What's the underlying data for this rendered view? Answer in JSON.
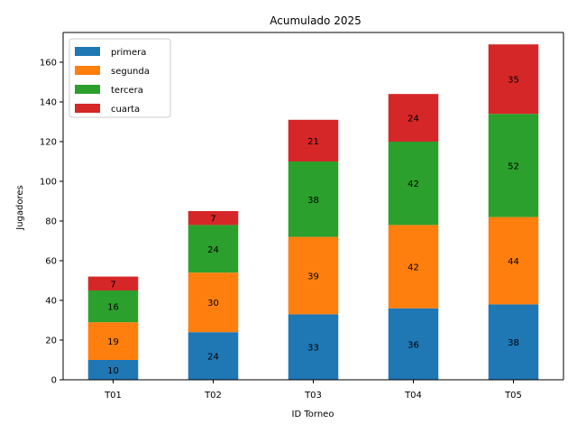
{
  "chart_data": {
    "type": "bar",
    "stacked": true,
    "title": "Acumulado 2025",
    "xlabel": "ID Torneo",
    "ylabel": "Jugadores",
    "categories": [
      "T01",
      "T02",
      "T03",
      "T04",
      "T05"
    ],
    "series": [
      {
        "name": "primera",
        "color": "#1f77b4",
        "values": [
          10,
          24,
          33,
          36,
          38
        ]
      },
      {
        "name": "segunda",
        "color": "#ff7f0e",
        "values": [
          19,
          30,
          39,
          42,
          44
        ]
      },
      {
        "name": "tercera",
        "color": "#2ca02c",
        "values": [
          16,
          24,
          38,
          42,
          52
        ]
      },
      {
        "name": "cuarta",
        "color": "#d62728",
        "values": [
          7,
          7,
          21,
          24,
          35
        ]
      }
    ],
    "ylim": [
      0,
      175
    ],
    "yticks": [
      0,
      20,
      40,
      60,
      80,
      100,
      120,
      140,
      160
    ],
    "grid": false,
    "legend_position": "top-left"
  }
}
